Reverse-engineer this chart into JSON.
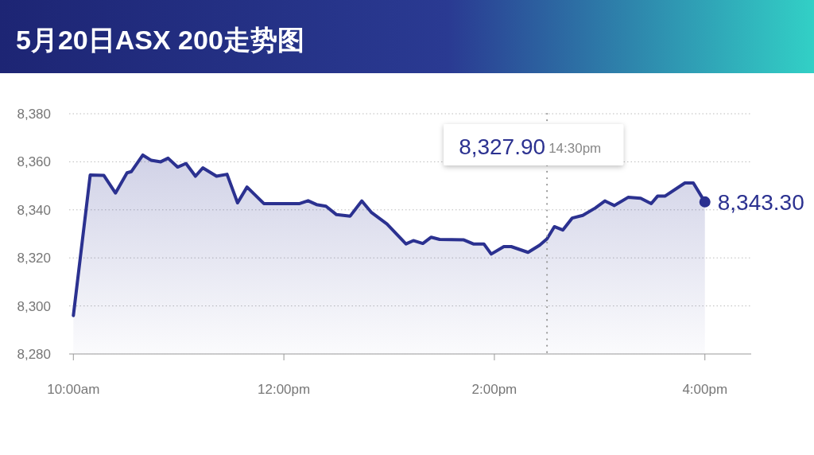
{
  "chart_data": {
    "type": "area",
    "title": "5月20日ASX 200走势图",
    "xlim": [
      9.96,
      16.44
    ],
    "ylim": [
      8280,
      8380
    ],
    "xticks": [
      {
        "value": 10,
        "label": "10:00am"
      },
      {
        "value": 12,
        "label": "12:00pm"
      },
      {
        "value": 14,
        "label": "2:00pm"
      },
      {
        "value": 16,
        "label": "4:00pm"
      }
    ],
    "yticks": [
      {
        "value": 8280,
        "label": "8,280"
      },
      {
        "value": 8300,
        "label": "8,300"
      },
      {
        "value": 8320,
        "label": "8,320"
      },
      {
        "value": 8340,
        "label": "8,340"
      },
      {
        "value": 8360,
        "label": "8,360"
      },
      {
        "value": 8380,
        "label": "8,380"
      }
    ],
    "grid": "y",
    "series": [
      {
        "color": "#2b3190",
        "x": [
          10.0,
          10.16,
          10.29,
          10.4,
          10.51,
          10.55,
          10.66,
          10.74,
          10.83,
          10.9,
          10.99,
          11.07,
          11.16,
          11.23,
          11.36,
          11.46,
          11.56,
          11.65,
          11.81,
          12.15,
          12.23,
          12.31,
          12.4,
          12.5,
          12.63,
          12.74,
          12.83,
          12.98,
          13.16,
          13.23,
          13.32,
          13.4,
          13.48,
          13.71,
          13.8,
          13.9,
          13.97,
          14.09,
          14.16,
          14.32,
          14.43,
          14.5,
          14.57,
          14.65,
          14.74,
          14.84,
          14.96,
          15.05,
          15.14,
          15.27,
          15.39,
          15.49,
          15.55,
          15.62,
          15.81,
          15.89,
          16.0
        ],
        "values": [
          8296,
          8354.5,
          8354.3,
          8347,
          8355.4,
          8355.9,
          8362.8,
          8360.6,
          8360,
          8361.5,
          8357.8,
          8359.3,
          8354,
          8357.5,
          8354,
          8354.8,
          8342.9,
          8349.5,
          8342.6,
          8342.6,
          8343.8,
          8342.2,
          8341.5,
          8338,
          8337.4,
          8343.7,
          8339,
          8334.1,
          8325.8,
          8327.2,
          8326,
          8328.6,
          8327.7,
          8327.5,
          8325.8,
          8325.8,
          8321.6,
          8324.7,
          8324.7,
          8322.3,
          8325.3,
          8327.9,
          8333,
          8331.6,
          8336.6,
          8337.7,
          8340.8,
          8343.7,
          8341.8,
          8345.2,
          8344.8,
          8342.6,
          8345.7,
          8345.7,
          8351.2,
          8351.2,
          8343.3
        ]
      },
      {
        "type": "scatter",
        "color": "#2b3190",
        "marker": "circle",
        "x": [
          16.0
        ],
        "values": [
          8343.3
        ]
      }
    ],
    "ref_lines": [
      {
        "axis": "x",
        "value": 14.5,
        "label": "14:30pm",
        "color": "#999999",
        "line_style": "dotted"
      }
    ],
    "annotations": [
      "8,327.90",
      {
        "text": "8,343.30",
        "x": 16.0,
        "y": 8343.3
      }
    ]
  }
}
